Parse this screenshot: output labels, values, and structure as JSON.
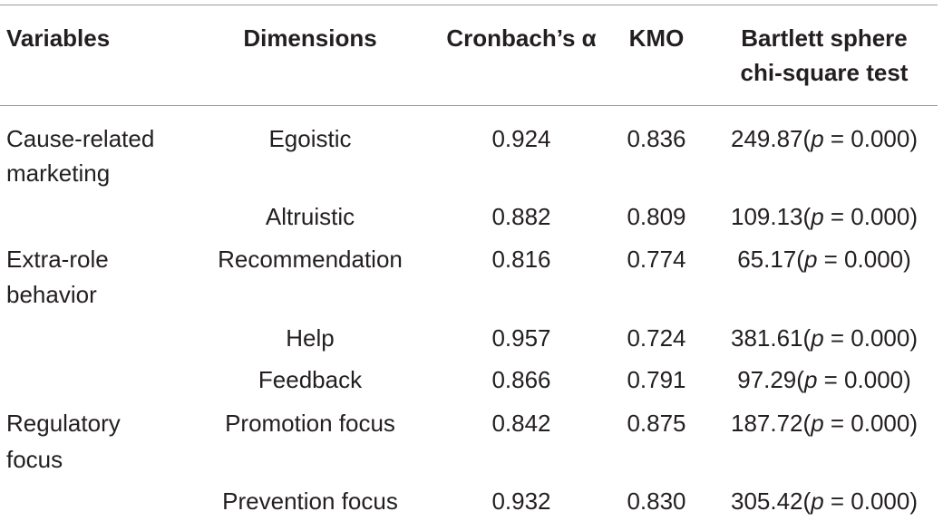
{
  "header": {
    "variables": "Variables",
    "dimensions": "Dimensions",
    "alpha": "Cronbach’s α",
    "kmo": "KMO",
    "bartlett_line1": "Bartlett sphere",
    "bartlett_line2": "chi-square test"
  },
  "rows": [
    {
      "variable": "Cause-related",
      "variable2": "marketing",
      "dimension": "Egoistic",
      "alpha": "0.924",
      "kmo": "0.836",
      "chi": "249.87",
      "p_label": "p",
      "p_rest": " = 0.000)"
    },
    {
      "variable": "",
      "variable2": "",
      "dimension": "Altruistic",
      "alpha": "0.882",
      "kmo": "0.809",
      "chi": "109.13",
      "p_label": "p",
      "p_rest": " = 0.000)"
    },
    {
      "variable": "Extra-role",
      "variable2": "behavior",
      "dimension": "Recommendation",
      "alpha": "0.816",
      "kmo": "0.774",
      "chi": "65.17",
      "p_label": "p",
      "p_rest": " = 0.000)"
    },
    {
      "variable": "",
      "variable2": "",
      "dimension": "Help",
      "alpha": "0.957",
      "kmo": "0.724",
      "chi": "381.61",
      "p_label": "p",
      "p_rest": " = 0.000)"
    },
    {
      "variable": "",
      "variable2": "",
      "dimension": "Feedback",
      "alpha": "0.866",
      "kmo": "0.791",
      "chi": "97.29",
      "p_label": "p",
      "p_rest": " = 0.000)"
    },
    {
      "variable": "Regulatory",
      "variable2": "focus",
      "dimension": "Promotion focus",
      "alpha": "0.842",
      "kmo": "0.875",
      "chi": "187.72",
      "p_label": "p",
      "p_rest": " = 0.000)"
    },
    {
      "variable": "",
      "variable2": "",
      "dimension": "Prevention focus",
      "alpha": "0.932",
      "kmo": "0.830",
      "chi": "305.42",
      "p_label": "p",
      "p_rest": " = 0.000)"
    }
  ]
}
